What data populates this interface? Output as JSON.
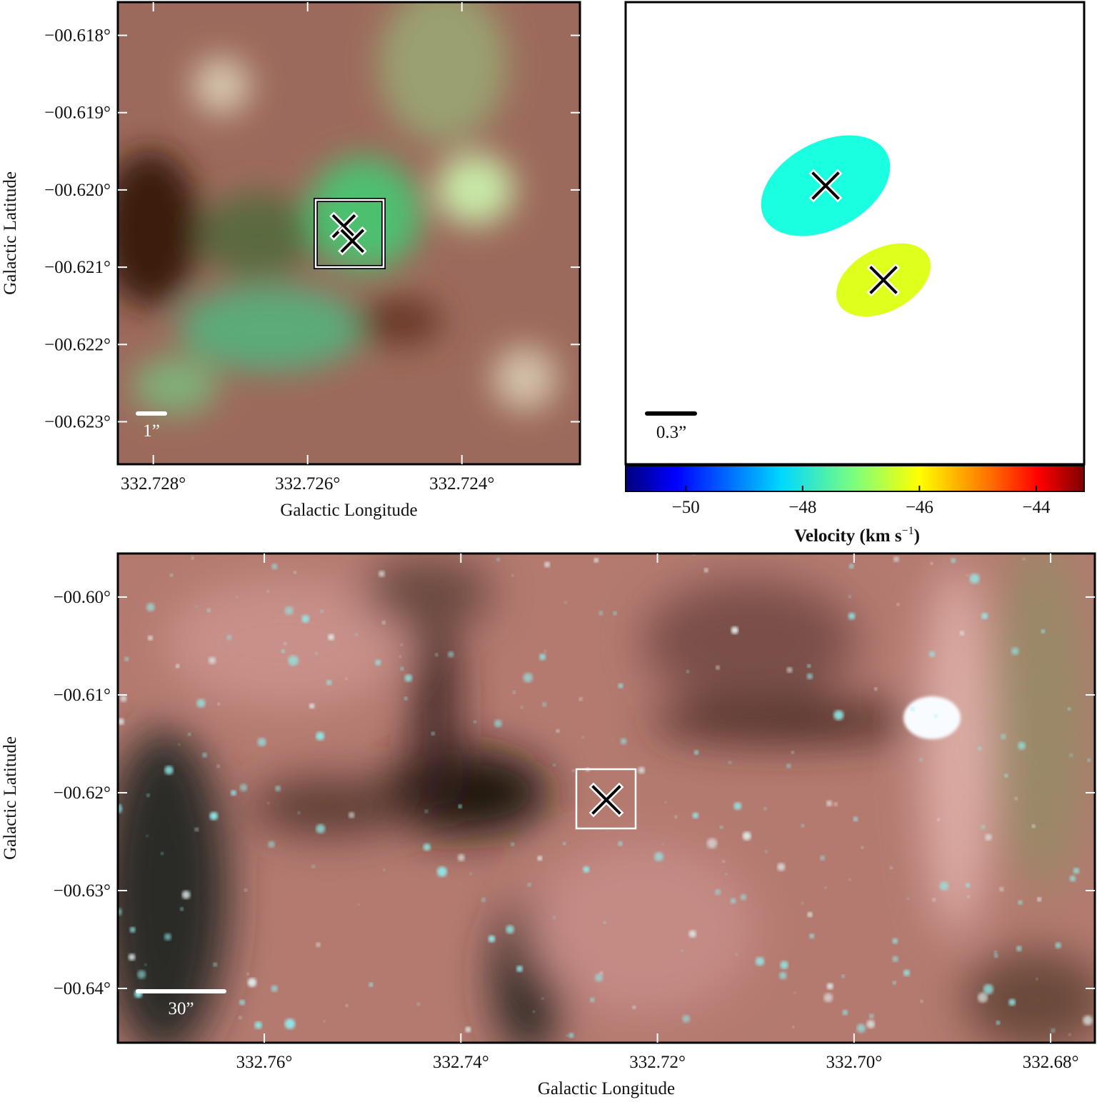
{
  "chart_data": [
    {
      "type": "image",
      "x_label": "Galactic Longitude",
      "y_label": "Galactic Latitude",
      "xlim": [
        332.72846,
        332.72247
      ],
      "ylim": [
        -0.62355,
        -0.61757
      ],
      "xticks": [
        {
          "value": 332.728,
          "label": "332.728°"
        },
        {
          "value": 332.726,
          "label": "332.726°"
        },
        {
          "value": 332.724,
          "label": "332.724°"
        }
      ],
      "yticks": [
        {
          "value": -0.618,
          "label": "−00.618°"
        },
        {
          "value": -0.619,
          "label": "−00.619°"
        },
        {
          "value": -0.62,
          "label": "−00.620°"
        },
        {
          "value": -0.621,
          "label": "−00.621°"
        },
        {
          "value": -0.622,
          "label": "−00.622°"
        },
        {
          "value": -0.623,
          "label": "−00.623°"
        }
      ],
      "scale_bar": "1”",
      "markers": {
        "x": [
          332.72553,
          332.72542
        ],
        "y": [
          -0.62047,
          -0.62066
        ]
      }
    },
    {
      "type": "ellipse",
      "scale_bar": "0.3”",
      "velocities": [
        -47.5,
        -46.2
      ],
      "colors": [
        "#19ffe0",
        "#dfff1c"
      ],
      "colorbar": {
        "label": {
          "text": "Velocity (km s",
          "superscript": "−1",
          "close": ")"
        },
        "lim": [
          -51.03,
          -43.18
        ],
        "ticks": [
          {
            "value": -50,
            "label": "−50"
          },
          {
            "value": -48,
            "label": "−48"
          },
          {
            "value": -46,
            "label": "−46"
          },
          {
            "value": -44,
            "label": "−44"
          }
        ]
      }
    },
    {
      "type": "image",
      "x_label": "Galactic Longitude",
      "y_label": "Galactic Latitude",
      "xlim": [
        332.7749,
        332.6755
      ],
      "ylim": [
        -0.64555,
        -0.59555
      ],
      "xticks": [
        {
          "value": 332.76,
          "label": "332.76°"
        },
        {
          "value": 332.74,
          "label": "332.74°"
        },
        {
          "value": 332.72,
          "label": "332.72°"
        },
        {
          "value": 332.7,
          "label": "332.70°"
        },
        {
          "value": 332.68,
          "label": "332.68°"
        }
      ],
      "yticks": [
        {
          "value": -0.6,
          "label": "−00.60°"
        },
        {
          "value": -0.61,
          "label": "−00.61°"
        },
        {
          "value": -0.62,
          "label": "−00.62°"
        },
        {
          "value": -0.63,
          "label": "−00.63°"
        },
        {
          "value": -0.64,
          "label": "−00.64°"
        }
      ],
      "scale_bar": "30”",
      "markers": {
        "x": [
          332.7252
        ],
        "y": [
          -0.62073
        ]
      }
    }
  ]
}
